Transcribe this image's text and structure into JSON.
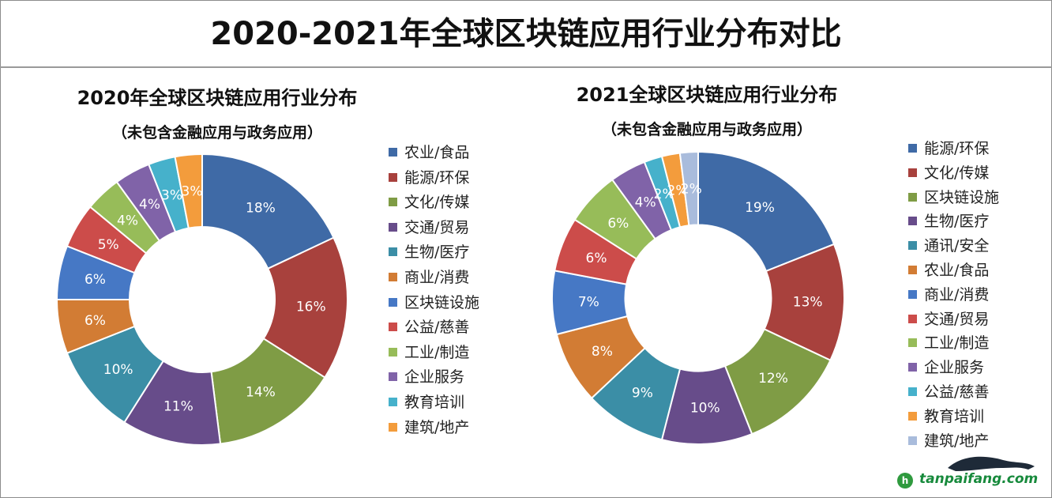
{
  "header": {
    "title": "2020-2021年全球区块链应用行业分布对比"
  },
  "chart_data": [
    {
      "type": "pie",
      "donut": true,
      "title": "2020年全球区块链应用行业分布",
      "subtitle": "（未包含金融应用与政务应用）",
      "categories": [
        "农业/食品",
        "能源/环保",
        "文化/传媒",
        "交通/贸易",
        "生物/医疗",
        "商业/消费",
        "区块链设施",
        "公益/慈善",
        "工业/制造",
        "企业服务",
        "教育培训",
        "建筑/地产"
      ],
      "values": [
        18,
        16,
        14,
        11,
        10,
        6,
        6,
        5,
        4,
        4,
        3,
        3
      ],
      "labels": [
        "18%",
        "16%",
        "14%",
        "11%",
        "10%",
        "6%",
        "6%",
        "5%",
        "4%",
        "4%",
        "3%",
        "3%"
      ],
      "colors": [
        "#3f6aa6",
        "#a8413d",
        "#7f9c45",
        "#674c8a",
        "#3b8ea6",
        "#d27c34",
        "#4678c5",
        "#cc4c4a",
        "#97bc59",
        "#8063a8",
        "#46b1cb",
        "#f39c3c"
      ],
      "legend": "right"
    },
    {
      "type": "pie",
      "donut": true,
      "title": "2021全球区块链应用行业分布",
      "subtitle": "（未包含金融应用与政务应用）",
      "categories": [
        "能源/环保",
        "文化/传媒",
        "区块链设施",
        "生物/医疗",
        "通讯/安全",
        "农业/食品",
        "商业/消费",
        "交通/贸易",
        "工业/制造",
        "企业服务",
        "公益/慈善",
        "教育培训",
        "建筑/地产"
      ],
      "values": [
        19,
        13,
        12,
        10,
        9,
        8,
        7,
        6,
        6,
        4,
        2,
        2,
        2
      ],
      "labels": [
        "19%",
        "13%",
        "12%",
        "10%",
        "9%",
        "8%",
        "7%",
        "6%",
        "6%",
        "4%",
        "2%",
        "2%",
        "2%"
      ],
      "colors": [
        "#3f6aa6",
        "#a8413d",
        "#7f9c45",
        "#674c8a",
        "#3b8ea6",
        "#d27c34",
        "#4678c5",
        "#cc4c4a",
        "#97bc59",
        "#8063a8",
        "#46b1cb",
        "#f39c3c",
        "#a9bcdc"
      ],
      "legend": "right"
    }
  ],
  "watermark": {
    "text": "tanpaifang.com"
  }
}
